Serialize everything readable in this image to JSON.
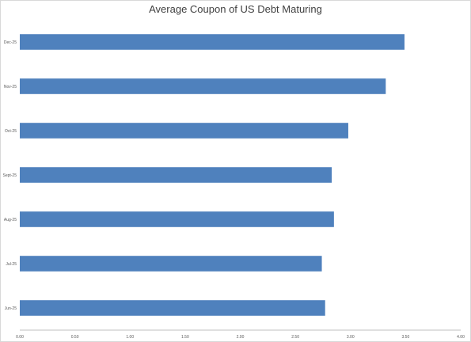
{
  "chart_data": {
    "type": "bar",
    "orientation": "horizontal",
    "title": "Average Coupon of US Debt Maturing",
    "xlabel": "",
    "ylabel": "",
    "categories": [
      "Dec-25",
      "Nov-25",
      "Oct-25",
      "Sept-25",
      "Aug-25",
      "Jul-25",
      "Jun-25"
    ],
    "values": [
      3.49,
      3.32,
      2.98,
      2.83,
      2.85,
      2.74,
      2.77
    ],
    "xlim": [
      0,
      4.0
    ],
    "xticks": [
      "0.00",
      "0.50",
      "1.00",
      "1.50",
      "2.00",
      "2.50",
      "3.00",
      "3.50",
      "4.00"
    ],
    "grid": false,
    "legend": "none",
    "bar_color": "#4f81bd"
  }
}
